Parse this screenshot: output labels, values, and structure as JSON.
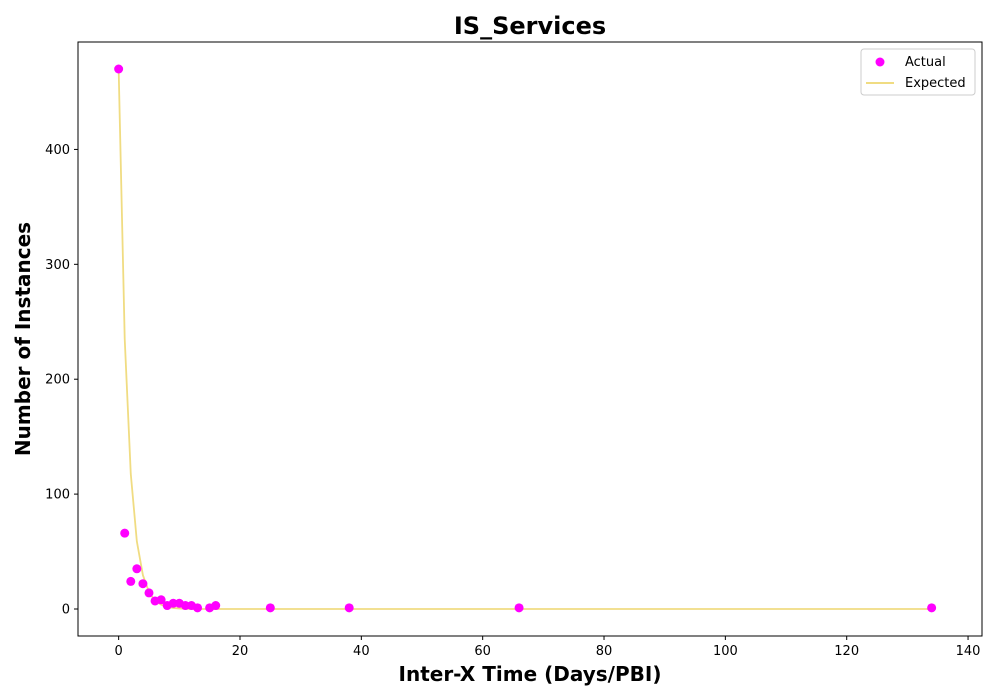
{
  "chart_data": {
    "type": "scatter",
    "title": "IS_Services",
    "xlabel": "Inter-X Time (Days/PBI)",
    "ylabel": "Number of Instances",
    "xlim": [
      -6.7,
      142.3
    ],
    "ylim": [
      -23.5,
      493.5
    ],
    "xticks": [
      0,
      20,
      40,
      60,
      80,
      100,
      120,
      140
    ],
    "yticks": [
      0,
      100,
      200,
      300,
      400
    ],
    "grid": false,
    "legend": "top-right",
    "series": [
      {
        "name": "Actual",
        "kind": "scatter",
        "color": "#ff00ff",
        "x": [
          0,
          1,
          2,
          3,
          4,
          5,
          6,
          7,
          8,
          9,
          10,
          11,
          12,
          13,
          15,
          16,
          25,
          38,
          66,
          134
        ],
        "y": [
          470,
          66,
          24,
          35,
          22,
          14,
          7,
          8,
          3,
          5,
          5,
          3,
          3,
          1,
          1,
          3,
          1,
          1,
          1,
          1
        ]
      },
      {
        "name": "Expected",
        "kind": "line",
        "color": "#f0dc82",
        "x": [
          0,
          1,
          2,
          3,
          4,
          5,
          6,
          7,
          8,
          9,
          10,
          11,
          12,
          13,
          14,
          15,
          16,
          18,
          20,
          25,
          30,
          38,
          50,
          66,
          80,
          100,
          120,
          134
        ],
        "y": [
          470,
          235,
          117.5,
          58.8,
          29.4,
          14.7,
          7.3,
          3.7,
          1.8,
          0.9,
          0.5,
          0.2,
          0.1,
          0.06,
          0.03,
          0.01,
          0,
          0,
          0,
          0,
          0,
          0,
          0,
          0,
          0,
          0,
          0,
          0
        ]
      }
    ]
  }
}
